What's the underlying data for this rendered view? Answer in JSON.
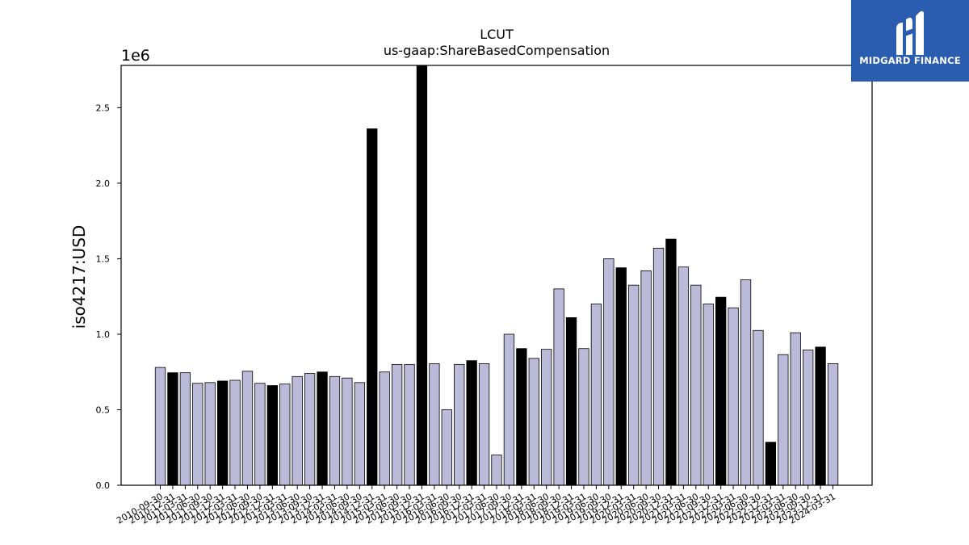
{
  "chart_data": {
    "type": "bar",
    "title": "LCUT",
    "subtitle": "us-gaap:ShareBasedCompensation",
    "ylabel": "iso4217:USD",
    "xlabel": "",
    "offset_label": "1e6",
    "ylim": [
      0,
      2780000
    ],
    "yticks": [
      0.0,
      0.5,
      1.0,
      1.5,
      2.0,
      2.5
    ],
    "ytick_labels": [
      "0.0",
      "0.5",
      "1.0",
      "1.5",
      "2.0",
      "2.5"
    ],
    "grid": false,
    "colors": {
      "quarterly": "#bcbad9",
      "annual": "#000000",
      "edge": "#000000"
    },
    "categories": [
      "2010-09-30",
      "2010-12-31",
      "2011-03-31",
      "2011-06-30",
      "2011-09-30",
      "2011-12-31",
      "2012-03-31",
      "2012-06-30",
      "2012-09-30",
      "2012-12-31",
      "2013-03-31",
      "2013-06-30",
      "2013-09-30",
      "2013-12-31",
      "2014-03-31",
      "2014-06-30",
      "2014-09-30",
      "2014-12-31",
      "2015-03-31",
      "2015-06-30",
      "2015-09-30",
      "2015-12-31",
      "2016-03-31",
      "2016-06-30",
      "2016-09-30",
      "2016-12-31",
      "2017-03-31",
      "2017-06-30",
      "2017-09-30",
      "2017-12-31",
      "2018-03-31",
      "2018-06-30",
      "2018-09-30",
      "2018-12-31",
      "2019-03-31",
      "2019-06-30",
      "2019-09-30",
      "2019-12-31",
      "2020-03-31",
      "2020-06-30",
      "2020-09-30",
      "2020-12-31",
      "2021-03-31",
      "2021-06-30",
      "2021-09-30",
      "2021-12-31",
      "2022-03-31",
      "2022-06-30",
      "2022-09-30",
      "2022-12-31",
      "2023-03-31",
      "2023-06-30",
      "2023-09-30",
      "2023-12-31",
      "2024-03-31"
    ],
    "series": [
      {
        "values": [
          780000,
          745000,
          745000,
          675000,
          680000,
          690000,
          695000,
          755000,
          675000,
          660000,
          670000,
          720000,
          740000,
          750000,
          720000,
          710000,
          680000,
          2360000,
          750000,
          800000,
          800000,
          2790000,
          805000,
          500000,
          800000,
          825000,
          805000,
          200000,
          1000000,
          905000,
          840000,
          900000,
          1300000,
          1110000,
          905000,
          1200000,
          1500000,
          1440000,
          1325000,
          1420000,
          1570000,
          1630000,
          1445000,
          1325000,
          1200000,
          1245000,
          1175000,
          1360000,
          1025000,
          285000,
          865000,
          1010000,
          895000,
          915000,
          805000
        ],
        "kind": [
          "q",
          "a",
          "q",
          "q",
          "q",
          "a",
          "q",
          "q",
          "q",
          "a",
          "q",
          "q",
          "q",
          "a",
          "q",
          "q",
          "q",
          "a",
          "q",
          "q",
          "q",
          "a",
          "q",
          "q",
          "q",
          "a",
          "q",
          "q",
          "q",
          "a",
          "q",
          "q",
          "q",
          "a",
          "q",
          "q",
          "q",
          "a",
          "q",
          "q",
          "q",
          "a",
          "q",
          "q",
          "q",
          "a",
          "q",
          "q",
          "q",
          "a",
          "q",
          "q",
          "q",
          "a",
          "q"
        ]
      }
    ]
  },
  "logo": {
    "text": "MIDGARD FINANCE",
    "icon": "midgard-logo-icon"
  }
}
